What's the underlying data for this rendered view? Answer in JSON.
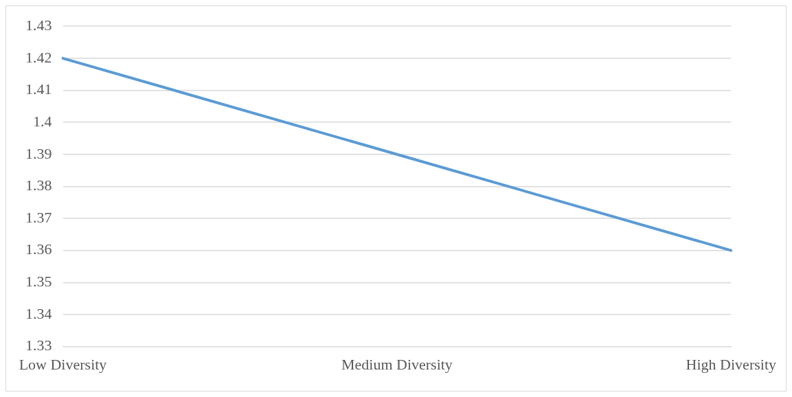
{
  "chart_data": {
    "type": "line",
    "categories": [
      "Low Diversity",
      "Medium Diversity",
      "High Diversity"
    ],
    "series": [
      {
        "color": "#5b9bd5",
        "values": [
          1.42,
          1.39,
          1.36
        ]
      }
    ],
    "ylim": [
      1.33,
      1.43
    ],
    "yticks": [
      1.33,
      1.34,
      1.35,
      1.36,
      1.37,
      1.38,
      1.39,
      1.4,
      1.41,
      1.42,
      1.43
    ],
    "grid": "y",
    "legend": false,
    "marker": "none",
    "line_style": "solid"
  }
}
